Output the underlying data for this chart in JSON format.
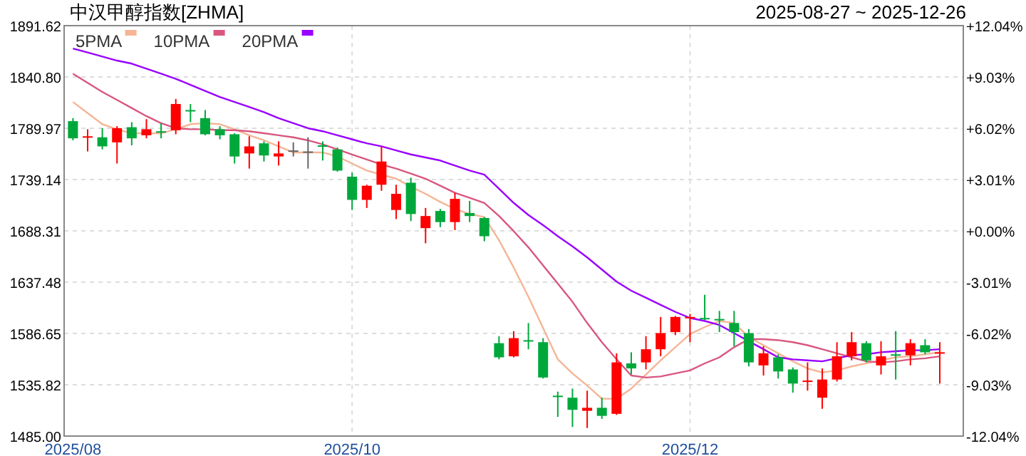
{
  "chart_data": {
    "type": "candlestick",
    "title": "中汉甲醇指数[ZHMA]",
    "subtitle": "2025-08-27 ~ 2025-12-26",
    "categories": [
      "2025/08",
      null,
      null,
      null,
      null,
      null,
      null,
      null,
      null,
      null,
      null,
      null,
      null,
      null,
      null,
      null,
      null,
      null,
      null,
      "2025/10",
      null,
      null,
      null,
      null,
      null,
      null,
      null,
      null,
      null,
      null,
      null,
      null,
      null,
      null,
      null,
      null,
      null,
      null,
      null,
      null,
      null,
      null,
      "2025/12",
      null,
      null,
      null,
      null,
      null,
      null,
      null,
      null,
      null,
      null,
      null,
      null,
      null,
      null,
      null,
      null,
      null
    ],
    "ohlc": [
      [
        1797,
        1800,
        1778,
        1780
      ],
      [
        1781,
        1789,
        1767,
        1782
      ],
      [
        1781,
        1790,
        1769,
        1772
      ],
      [
        1776,
        1792,
        1755,
        1790
      ],
      [
        1791,
        1796,
        1773,
        1780
      ],
      [
        1783,
        1799,
        1780,
        1789
      ],
      [
        1787,
        1795,
        1780,
        1786
      ],
      [
        1788,
        1819,
        1784,
        1814
      ],
      [
        1808,
        1814,
        1796,
        1807
      ],
      [
        1800,
        1808,
        1783,
        1784
      ],
      [
        1789,
        1792,
        1779,
        1783
      ],
      [
        1784,
        1785,
        1755,
        1762
      ],
      [
        1765,
        1782,
        1750,
        1772
      ],
      [
        1775,
        1777,
        1757,
        1763
      ],
      [
        1762,
        1777,
        1753,
        1765
      ],
      [
        1768,
        1776,
        1762,
        1768
      ],
      [
        1767,
        1781,
        1750,
        1767
      ],
      [
        1773,
        1777,
        1758,
        1772
      ],
      [
        1769,
        1771,
        1747,
        1748
      ],
      [
        1742,
        1746,
        1709,
        1719
      ],
      [
        1719,
        1734,
        1711,
        1733
      ],
      [
        1734,
        1772,
        1728,
        1757
      ],
      [
        1709,
        1734,
        1700,
        1725
      ],
      [
        1736,
        1741,
        1698,
        1705
      ],
      [
        1691,
        1711,
        1676,
        1703
      ],
      [
        1708,
        1710,
        1692,
        1697
      ],
      [
        1697,
        1726,
        1689,
        1720
      ],
      [
        1706,
        1718,
        1697,
        1703
      ],
      [
        1701,
        1702,
        1678,
        1683
      ],
      [
        1577,
        1584,
        1561,
        1563
      ],
      [
        1564,
        1589,
        1563,
        1582
      ],
      [
        1580,
        1597,
        1571,
        1579
      ],
      [
        1578,
        1582,
        1542,
        1543
      ],
      [
        1525,
        1529,
        1504,
        1524
      ],
      [
        1523,
        1532,
        1494,
        1511
      ],
      [
        1510,
        1530,
        1493,
        1513
      ],
      [
        1513,
        1523,
        1502,
        1505
      ],
      [
        1507,
        1567,
        1506,
        1558
      ],
      [
        1557,
        1568,
        1546,
        1552
      ],
      [
        1558,
        1584,
        1551,
        1571
      ],
      [
        1571,
        1603,
        1564,
        1587
      ],
      [
        1588,
        1604,
        1585,
        1603
      ],
      [
        1602,
        1606,
        1578,
        1603
      ],
      [
        1602,
        1625,
        1600,
        1601
      ],
      [
        1601,
        1609,
        1588,
        1600
      ],
      [
        1597,
        1609,
        1574,
        1588
      ],
      [
        1587,
        1591,
        1554,
        1558
      ],
      [
        1555,
        1574,
        1545,
        1567
      ],
      [
        1563,
        1566,
        1542,
        1549
      ],
      [
        1551,
        1553,
        1528,
        1537
      ],
      [
        1539,
        1558,
        1530,
        1540
      ],
      [
        1523,
        1552,
        1512,
        1541
      ],
      [
        1541,
        1578,
        1539,
        1564
      ],
      [
        1564,
        1588,
        1560,
        1578
      ],
      [
        1577,
        1579,
        1558,
        1560
      ],
      [
        1555,
        1579,
        1546,
        1564
      ],
      [
        1566,
        1589,
        1541,
        1565
      ],
      [
        1565,
        1581,
        1555,
        1577
      ],
      [
        1575,
        1581,
        1566,
        1568
      ],
      [
        1567,
        1578,
        1537,
        1568
      ]
    ],
    "colors": [
      "#00a83c",
      "#ff0000",
      "#00a83c",
      "#ff0000",
      "#00a83c",
      "#ff0000",
      "#00a83c",
      "#ff0000",
      "#00a83c",
      "#00a83c",
      "#00a83c",
      "#00a83c",
      "#ff0000",
      "#00a83c",
      "#ff0000",
      "#666666",
      "#666666",
      "#00a83c",
      "#00a83c",
      "#00a83c",
      "#ff0000",
      "#ff0000",
      "#ff0000",
      "#00a83c",
      "#ff0000",
      "#00a83c",
      "#ff0000",
      "#00a83c",
      "#00a83c",
      "#00a83c",
      "#ff0000",
      "#00a83c",
      "#00a83c",
      "#00a83c",
      "#00a83c",
      "#ff0000",
      "#00a83c",
      "#ff0000",
      "#00a83c",
      "#ff0000",
      "#ff0000",
      "#ff0000",
      "#ff0000",
      "#00a83c",
      "#00a83c",
      "#00a83c",
      "#00a83c",
      "#ff0000",
      "#00a83c",
      "#00a83c",
      "#ff0000",
      "#ff0000",
      "#ff0000",
      "#ff0000",
      "#00a83c",
      "#ff0000",
      "#00a83c",
      "#ff0000",
      "#00a83c",
      "#ff0000"
    ],
    "series": [
      {
        "type": "line",
        "name": "5PMA",
        "color": "#f5b596",
        "values": [
          1816,
          1805,
          1794,
          1789,
          1785,
          1785,
          1785,
          1789,
          1794,
          1795,
          1794,
          1789,
          1783,
          1778,
          1772,
          1766,
          1766,
          1766,
          1762,
          1755,
          1748,
          1744,
          1740,
          1732,
          1725,
          1717,
          1710,
          1705,
          1702,
          1679,
          1652,
          1623,
          1592,
          1561,
          1547,
          1535,
          1522,
          1522,
          1532,
          1546,
          1560,
          1573,
          1586,
          1593,
          1599,
          1597,
          1583,
          1575,
          1567,
          1559,
          1552,
          1548,
          1550,
          1554,
          1557,
          1560,
          1563,
          1564,
          1566,
          1568
        ]
      },
      {
        "type": "line",
        "name": "10PMA",
        "color": "#d9577f",
        "values": [
          1844,
          1835,
          1826,
          1818,
          1810,
          1802,
          1795,
          1790,
          1789,
          1789,
          1788,
          1788,
          1787,
          1785,
          1783,
          1781,
          1778,
          1774,
          1769,
          1764,
          1759,
          1754,
          1750,
          1745,
          1740,
          1733,
          1726,
          1721,
          1716,
          1703,
          1688,
          1672,
          1654,
          1636,
          1618,
          1597,
          1578,
          1561,
          1545,
          1543,
          1544,
          1547,
          1550,
          1557,
          1563,
          1573,
          1581,
          1581,
          1580,
          1578,
          1575,
          1571,
          1567,
          1563,
          1559,
          1558,
          1559,
          1561,
          1562,
          1564
        ]
      },
      {
        "type": "line",
        "name": "20PMA",
        "color": "#9900ff",
        "values": [
          1869,
          1865,
          1861,
          1857,
          1854,
          1849,
          1844,
          1839,
          1833,
          1827,
          1821,
          1816,
          1811,
          1806,
          1800,
          1795,
          1790,
          1787,
          1783,
          1779,
          1775,
          1772,
          1768,
          1764,
          1761,
          1758,
          1753,
          1748,
          1744,
          1730,
          1716,
          1704,
          1694,
          1683,
          1673,
          1662,
          1650,
          1638,
          1629,
          1622,
          1615,
          1608,
          1602,
          1599,
          1595,
          1587,
          1579,
          1571,
          1563,
          1561,
          1560,
          1559,
          1562,
          1565,
          1566,
          1568,
          1569,
          1570,
          1570,
          1571
        ]
      }
    ],
    "ylim": [
      1485,
      1891.62
    ],
    "yticks": [
      {
        "value": 1485,
        "label": "1485.00"
      },
      1535.82,
      1586.65,
      1637.48,
      1688.31,
      1739.14,
      1789.97,
      {
        "value": 1840.8,
        "label": "1840.80"
      },
      1891.62
    ],
    "y2lim": [
      -12.04,
      12.04
    ],
    "y2ticks": [
      {
        "value": -12.04,
        "label": "-12.04%"
      },
      {
        "value": -9.03,
        "label": "-9.03%"
      },
      {
        "value": -6.02,
        "label": "-6.02%"
      },
      {
        "value": -3.01,
        "label": "-3.01%"
      },
      {
        "value": 0,
        "label": "+0.00%"
      },
      {
        "value": 3.01,
        "label": "+3.01%"
      },
      {
        "value": 6.02,
        "label": "+6.02%"
      },
      {
        "value": 9.03,
        "label": "+9.03%"
      },
      {
        "value": 12.04,
        "label": "+12.04%"
      }
    ],
    "grid": true,
    "legend": "top left"
  }
}
